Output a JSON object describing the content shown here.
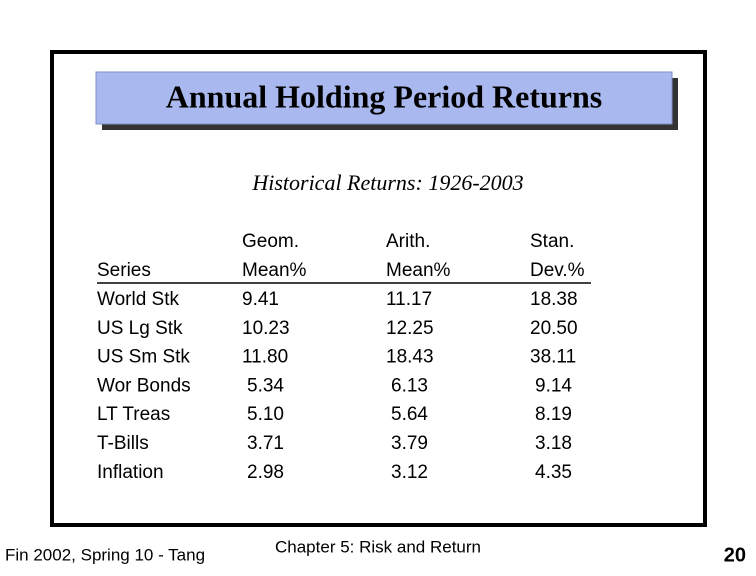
{
  "header": {
    "title": "Annual Holding Period Returns",
    "subtitle": "Historical Returns: 1926-2003"
  },
  "table": {
    "header_rows": [
      [
        "",
        "Geom.",
        "Arith.",
        "Stan."
      ],
      [
        "Series",
        "Mean%",
        "Mean%",
        "Dev.%"
      ]
    ],
    "rows": [
      [
        "World Stk",
        "9.41",
        "11.17",
        "18.38"
      ],
      [
        "US Lg Stk",
        "10.23",
        "12.25",
        "20.50"
      ],
      [
        "US Sm Stk",
        "11.80",
        "18.43",
        "38.11"
      ],
      [
        "Wor Bonds",
        "5.34",
        "6.13",
        "9.14"
      ],
      [
        "LT Treas",
        "5.10",
        "5.64",
        "8.19"
      ],
      [
        "T-Bills",
        "3.71",
        "3.79",
        "3.18"
      ],
      [
        "Inflation",
        "2.98",
        "3.12",
        "4.35"
      ]
    ]
  },
  "footer": {
    "left": "Fin 2002, Spring 10 - Tang",
    "center": "Chapter 5: Risk and Return",
    "page": "20"
  }
}
